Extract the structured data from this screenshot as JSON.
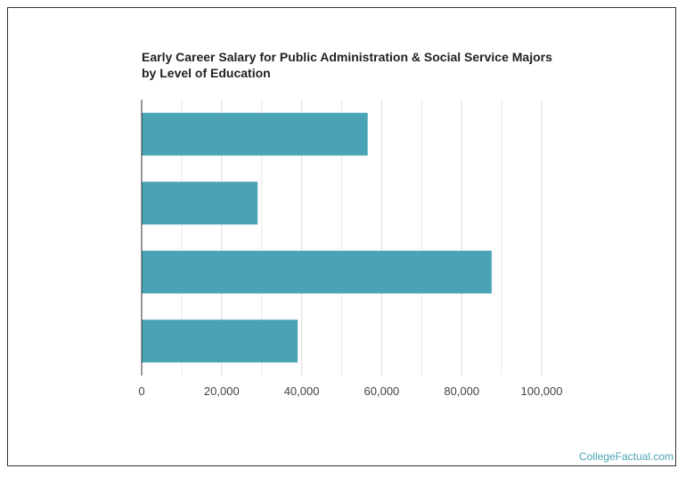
{
  "chart_data": {
    "type": "bar",
    "orientation": "horizontal",
    "title": "Early Career Salary for Public Administration & Social Service Majors",
    "subtitle": "by Level of Education",
    "categories": [
      "",
      "",
      "",
      ""
    ],
    "values": [
      56500,
      29000,
      87500,
      39000
    ],
    "xlim": [
      0,
      100000
    ],
    "xticks": [
      0,
      20000,
      40000,
      60000,
      80000,
      100000
    ],
    "xtick_labels": [
      "0",
      "20,000",
      "40,000",
      "60,000",
      "80,000",
      "100,000"
    ],
    "minor_gridlines": true,
    "bar_color": "#4aa3b5",
    "grid_color": "#dddddd",
    "xlabel": "",
    "ylabel": ""
  },
  "footer": {
    "credit": "CollegeFactual.com",
    "credit_color": "#4aa3b5"
  }
}
